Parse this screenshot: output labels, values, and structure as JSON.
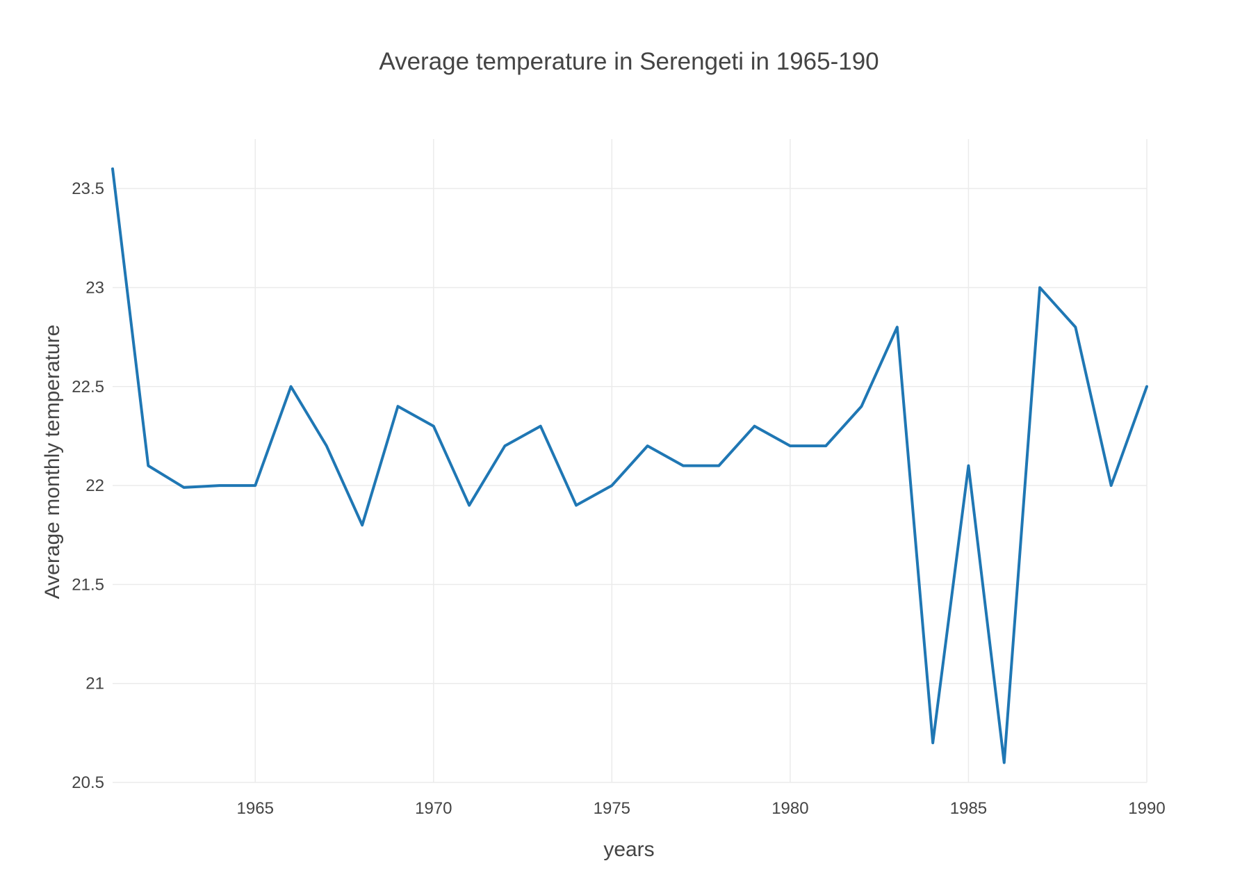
{
  "chart_data": {
    "type": "line",
    "title": "Average temperature in Serengeti in 1965-190",
    "xlabel": "years",
    "ylabel": "Average monthly temperature",
    "xlim": [
      1961,
      1990
    ],
    "ylim": [
      20.5,
      23.75
    ],
    "grid": true,
    "x_ticks": [
      1965,
      1970,
      1975,
      1980,
      1985,
      1990
    ],
    "y_ticks": [
      20.5,
      21,
      21.5,
      22,
      22.5,
      23,
      23.5
    ],
    "x_tick_labels": [
      "1965",
      "1970",
      "1975",
      "1980",
      "1985",
      "1990"
    ],
    "y_tick_labels": [
      "20.5",
      "21",
      "21.5",
      "22",
      "22.5",
      "23",
      "23.5"
    ],
    "series": [
      {
        "color": "#1f77b4",
        "x": [
          1961,
          1962,
          1963,
          1964,
          1965,
          1966,
          1967,
          1968,
          1969,
          1970,
          1971,
          1972,
          1973,
          1974,
          1975,
          1976,
          1977,
          1978,
          1979,
          1980,
          1981,
          1982,
          1983,
          1984,
          1985,
          1986,
          1987,
          1988,
          1989,
          1990
        ],
        "values": [
          23.6,
          22.1,
          21.99,
          22.0,
          22.0,
          22.5,
          22.2,
          21.8,
          22.4,
          22.3,
          21.9,
          22.2,
          22.3,
          21.9,
          22.0,
          22.2,
          22.1,
          22.1,
          22.3,
          22.2,
          22.2,
          22.4,
          22.8,
          20.7,
          22.1,
          20.6,
          23.0,
          22.8,
          22.0,
          22.5
        ]
      }
    ]
  }
}
